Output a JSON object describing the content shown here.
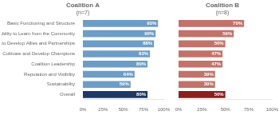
{
  "chart_data": [
    {
      "type": "bar",
      "orientation": "horizontal",
      "title": "Coalition A",
      "subtitle": "(n=7)",
      "categories": [
        "Basic Functioning and Structure",
        "Ability to Learn from the Community",
        "Ability to Develop Allies and Partnerships",
        "Ability to Cultivate and Develop Champions",
        "Coalition Leadership",
        "Reputation and Visibility",
        "Sustainability",
        "Overall"
      ],
      "values": [
        93,
        90,
        88,
        83,
        80,
        64,
        59,
        80
      ],
      "value_labels": [
        "93%",
        "90%",
        "88%",
        "83%",
        "80%",
        "64%",
        "59%",
        "80%"
      ],
      "colors": [
        "#6d9dc5",
        "#6d9dc5",
        "#6d9dc5",
        "#6d9dc5",
        "#6d9dc5",
        "#6d9dc5",
        "#6d9dc5",
        "#1f3864"
      ],
      "xlim": [
        0,
        100
      ],
      "xticks": [
        {
          "value": 0,
          "label": "0%"
        },
        {
          "value": 25,
          "label": "25%"
        },
        {
          "value": 50,
          "label": "50%"
        },
        {
          "value": 75,
          "label": "75%"
        },
        {
          "value": 100,
          "label": "100%"
        }
      ],
      "data_labels": true,
      "grid": false
    },
    {
      "type": "bar",
      "orientation": "horizontal",
      "title": "Coalition B",
      "subtitle": "(n=8)",
      "categories": [
        "Basic Functioning and Structure",
        "Ability to Learn from the Community",
        "Ability to Develop Allies and Partnerships",
        "Ability to Cultivate and Develop Champions",
        "Coalition Leadership",
        "Reputation and Visibility",
        "Sustainability",
        "Overall"
      ],
      "values": [
        70,
        59,
        50,
        47,
        47,
        39,
        39,
        50
      ],
      "value_labels": [
        "70%",
        "59%",
        "50%",
        "47%",
        "47%",
        "39%",
        "39%",
        "50%"
      ],
      "colors": [
        "#c0736a",
        "#c0736a",
        "#c0736a",
        "#c0736a",
        "#c0736a",
        "#c0736a",
        "#c0736a",
        "#8b2020"
      ],
      "xlim": [
        0,
        100
      ],
      "xticks": [
        {
          "value": 0,
          "label": "0%"
        },
        {
          "value": 25,
          "label": "25%"
        },
        {
          "value": 50,
          "label": "50%"
        },
        {
          "value": 75,
          "label": "75%"
        },
        {
          "value": 100,
          "label": "100%"
        }
      ],
      "data_labels": true,
      "grid": false,
      "tick_labels": "x"
    }
  ]
}
